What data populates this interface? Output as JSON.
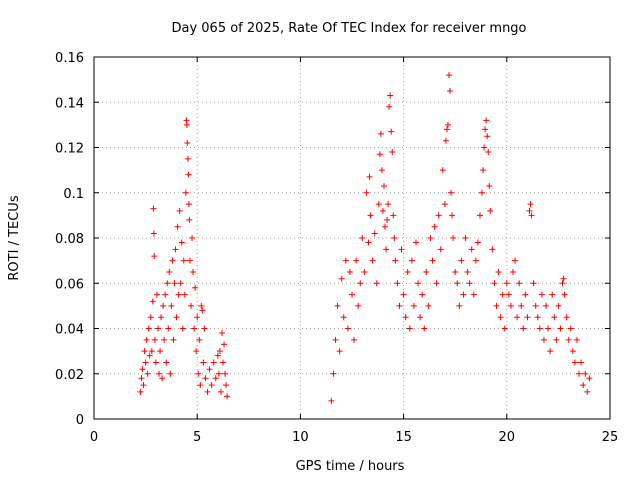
{
  "chart_data": {
    "type": "scatter",
    "title": "Day 065 of 2025, Rate Of TEC Index for receiver mngo",
    "xlabel": "GPS time / hours",
    "ylabel": "ROTI / TECUs",
    "xlim": [
      0,
      25
    ],
    "ylim": [
      0,
      0.16
    ],
    "x_ticks": [
      0,
      5,
      10,
      15,
      20,
      25
    ],
    "x_tick_labels": [
      "0",
      "5",
      "10",
      "15",
      "20",
      "25"
    ],
    "y_ticks": [
      0,
      0.02,
      0.04,
      0.06,
      0.08,
      0.1,
      0.12,
      0.14,
      0.16
    ],
    "y_tick_labels": [
      "0",
      "0.02",
      "0.04",
      "0.06",
      "0.08",
      "0.1",
      "0.12",
      "0.14",
      "0.16"
    ],
    "grid": true,
    "marker": "+",
    "color": "#ff0000",
    "series": [
      {
        "name": "ROTI",
        "points": [
          [
            2.25,
            0.012
          ],
          [
            2.3,
            0.018
          ],
          [
            2.35,
            0.022
          ],
          [
            2.4,
            0.015
          ],
          [
            2.45,
            0.03
          ],
          [
            2.5,
            0.025
          ],
          [
            2.55,
            0.035
          ],
          [
            2.6,
            0.02
          ],
          [
            2.65,
            0.04
          ],
          [
            2.7,
            0.028
          ],
          [
            2.75,
            0.045
          ],
          [
            2.8,
            0.03
          ],
          [
            2.85,
            0.052
          ],
          [
            2.88,
            0.093
          ],
          [
            2.9,
            0.082
          ],
          [
            2.92,
            0.072
          ],
          [
            2.95,
            0.035
          ],
          [
            3.0,
            0.025
          ],
          [
            3.05,
            0.055
          ],
          [
            3.1,
            0.04
          ],
          [
            3.15,
            0.02
          ],
          [
            3.2,
            0.03
          ],
          [
            3.25,
            0.045
          ],
          [
            3.3,
            0.018
          ],
          [
            3.35,
            0.05
          ],
          [
            3.4,
            0.035
          ],
          [
            3.45,
            0.055
          ],
          [
            3.5,
            0.025
          ],
          [
            3.55,
            0.06
          ],
          [
            3.6,
            0.04
          ],
          [
            3.65,
            0.065
          ],
          [
            3.7,
            0.02
          ],
          [
            3.75,
            0.05
          ],
          [
            3.8,
            0.07
          ],
          [
            3.85,
            0.035
          ],
          [
            3.9,
            0.06
          ],
          [
            3.95,
            0.075
          ],
          [
            4.0,
            0.045
          ],
          [
            4.05,
            0.085
          ],
          [
            4.1,
            0.055
          ],
          [
            4.15,
            0.092
          ],
          [
            4.2,
            0.06
          ],
          [
            4.25,
            0.078
          ],
          [
            4.3,
            0.04
          ],
          [
            4.35,
            0.07
          ],
          [
            4.4,
            0.055
          ],
          [
            4.45,
            0.1
          ],
          [
            4.48,
            0.132
          ],
          [
            4.5,
            0.13
          ],
          [
            4.52,
            0.122
          ],
          [
            4.55,
            0.115
          ],
          [
            4.58,
            0.108
          ],
          [
            4.6,
            0.095
          ],
          [
            4.62,
            0.088
          ],
          [
            4.65,
            0.07
          ],
          [
            4.7,
            0.05
          ],
          [
            4.75,
            0.08
          ],
          [
            4.8,
            0.065
          ],
          [
            4.85,
            0.04
          ],
          [
            4.9,
            0.058
          ],
          [
            4.95,
            0.03
          ],
          [
            5.0,
            0.045
          ],
          [
            5.05,
            0.02
          ],
          [
            5.1,
            0.035
          ],
          [
            5.15,
            0.015
          ],
          [
            5.2,
            0.05
          ],
          [
            5.25,
            0.048
          ],
          [
            5.3,
            0.025
          ],
          [
            5.35,
            0.04
          ],
          [
            5.4,
            0.018
          ],
          [
            5.5,
            0.012
          ],
          [
            5.6,
            0.022
          ],
          [
            5.7,
            0.015
          ],
          [
            5.8,
            0.025
          ],
          [
            5.9,
            0.018
          ],
          [
            6.0,
            0.028
          ],
          [
            6.05,
            0.02
          ],
          [
            6.1,
            0.03
          ],
          [
            6.15,
            0.012
          ],
          [
            6.2,
            0.038
          ],
          [
            6.25,
            0.025
          ],
          [
            6.3,
            0.033
          ],
          [
            6.35,
            0.02
          ],
          [
            6.4,
            0.015
          ],
          [
            6.45,
            0.01
          ],
          [
            11.5,
            0.008
          ],
          [
            11.6,
            0.02
          ],
          [
            11.7,
            0.035
          ],
          [
            11.8,
            0.05
          ],
          [
            11.9,
            0.03
          ],
          [
            12.0,
            0.062
          ],
          [
            12.1,
            0.045
          ],
          [
            12.2,
            0.07
          ],
          [
            12.3,
            0.04
          ],
          [
            12.4,
            0.065
          ],
          [
            12.5,
            0.055
          ],
          [
            12.6,
            0.035
          ],
          [
            12.7,
            0.07
          ],
          [
            12.8,
            0.05
          ],
          [
            12.9,
            0.06
          ],
          [
            13.0,
            0.08
          ],
          [
            13.1,
            0.065
          ],
          [
            13.2,
            0.1
          ],
          [
            13.3,
            0.078
          ],
          [
            13.35,
            0.107
          ],
          [
            13.4,
            0.09
          ],
          [
            13.5,
            0.07
          ],
          [
            13.6,
            0.082
          ],
          [
            13.7,
            0.06
          ],
          [
            13.8,
            0.095
          ],
          [
            13.85,
            0.117
          ],
          [
            13.9,
            0.126
          ],
          [
            13.95,
            0.11
          ],
          [
            14.0,
            0.092
          ],
          [
            14.05,
            0.103
          ],
          [
            14.1,
            0.085
          ],
          [
            14.15,
            0.075
          ],
          [
            14.2,
            0.088
          ],
          [
            14.25,
            0.095
          ],
          [
            14.3,
            0.138
          ],
          [
            14.35,
            0.143
          ],
          [
            14.4,
            0.127
          ],
          [
            14.45,
            0.118
          ],
          [
            14.5,
            0.09
          ],
          [
            14.55,
            0.08
          ],
          [
            14.6,
            0.07
          ],
          [
            14.7,
            0.06
          ],
          [
            14.8,
            0.05
          ],
          [
            14.9,
            0.075
          ],
          [
            15.0,
            0.055
          ],
          [
            15.1,
            0.045
          ],
          [
            15.2,
            0.065
          ],
          [
            15.3,
            0.04
          ],
          [
            15.4,
            0.07
          ],
          [
            15.5,
            0.05
          ],
          [
            15.6,
            0.078
          ],
          [
            15.7,
            0.06
          ],
          [
            15.8,
            0.045
          ],
          [
            15.9,
            0.055
          ],
          [
            16.0,
            0.04
          ],
          [
            16.1,
            0.065
          ],
          [
            16.2,
            0.05
          ],
          [
            16.3,
            0.08
          ],
          [
            16.4,
            0.07
          ],
          [
            16.5,
            0.085
          ],
          [
            16.6,
            0.06
          ],
          [
            16.7,
            0.09
          ],
          [
            16.8,
            0.075
          ],
          [
            16.9,
            0.11
          ],
          [
            17.0,
            0.095
          ],
          [
            17.05,
            0.123
          ],
          [
            17.1,
            0.128
          ],
          [
            17.15,
            0.13
          ],
          [
            17.2,
            0.152
          ],
          [
            17.25,
            0.145
          ],
          [
            17.3,
            0.1
          ],
          [
            17.35,
            0.09
          ],
          [
            17.4,
            0.08
          ],
          [
            17.5,
            0.065
          ],
          [
            17.6,
            0.06
          ],
          [
            17.7,
            0.05
          ],
          [
            17.8,
            0.07
          ],
          [
            17.9,
            0.055
          ],
          [
            18.0,
            0.08
          ],
          [
            18.1,
            0.065
          ],
          [
            18.2,
            0.06
          ],
          [
            18.3,
            0.075
          ],
          [
            18.4,
            0.055
          ],
          [
            18.5,
            0.07
          ],
          [
            18.6,
            0.078
          ],
          [
            18.7,
            0.09
          ],
          [
            18.8,
            0.1
          ],
          [
            18.85,
            0.11
          ],
          [
            18.9,
            0.12
          ],
          [
            18.95,
            0.128
          ],
          [
            19.0,
            0.132
          ],
          [
            19.05,
            0.125
          ],
          [
            19.1,
            0.118
          ],
          [
            19.15,
            0.103
          ],
          [
            19.2,
            0.092
          ],
          [
            19.3,
            0.075
          ],
          [
            19.4,
            0.06
          ],
          [
            19.5,
            0.05
          ],
          [
            19.6,
            0.065
          ],
          [
            19.7,
            0.045
          ],
          [
            19.8,
            0.055
          ],
          [
            19.9,
            0.04
          ],
          [
            20.0,
            0.06
          ],
          [
            20.1,
            0.055
          ],
          [
            20.2,
            0.05
          ],
          [
            20.3,
            0.065
          ],
          [
            20.4,
            0.07
          ],
          [
            20.5,
            0.045
          ],
          [
            20.6,
            0.06
          ],
          [
            20.7,
            0.05
          ],
          [
            20.8,
            0.04
          ],
          [
            20.9,
            0.055
          ],
          [
            21.0,
            0.045
          ],
          [
            21.1,
            0.092
          ],
          [
            21.15,
            0.095
          ],
          [
            21.2,
            0.09
          ],
          [
            21.3,
            0.06
          ],
          [
            21.4,
            0.05
          ],
          [
            21.5,
            0.045
          ],
          [
            21.6,
            0.04
          ],
          [
            21.7,
            0.055
          ],
          [
            21.8,
            0.035
          ],
          [
            21.9,
            0.05
          ],
          [
            22.0,
            0.04
          ],
          [
            22.1,
            0.03
          ],
          [
            22.2,
            0.055
          ],
          [
            22.3,
            0.045
          ],
          [
            22.4,
            0.035
          ],
          [
            22.5,
            0.05
          ],
          [
            22.6,
            0.04
          ],
          [
            22.7,
            0.06
          ],
          [
            22.75,
            0.062
          ],
          [
            22.8,
            0.055
          ],
          [
            22.9,
            0.045
          ],
          [
            23.0,
            0.035
          ],
          [
            23.1,
            0.04
          ],
          [
            23.2,
            0.03
          ],
          [
            23.3,
            0.025
          ],
          [
            23.4,
            0.035
          ],
          [
            23.5,
            0.02
          ],
          [
            23.6,
            0.025
          ],
          [
            23.7,
            0.015
          ],
          [
            23.8,
            0.02
          ],
          [
            23.9,
            0.012
          ],
          [
            24.0,
            0.018
          ]
        ]
      }
    ]
  }
}
